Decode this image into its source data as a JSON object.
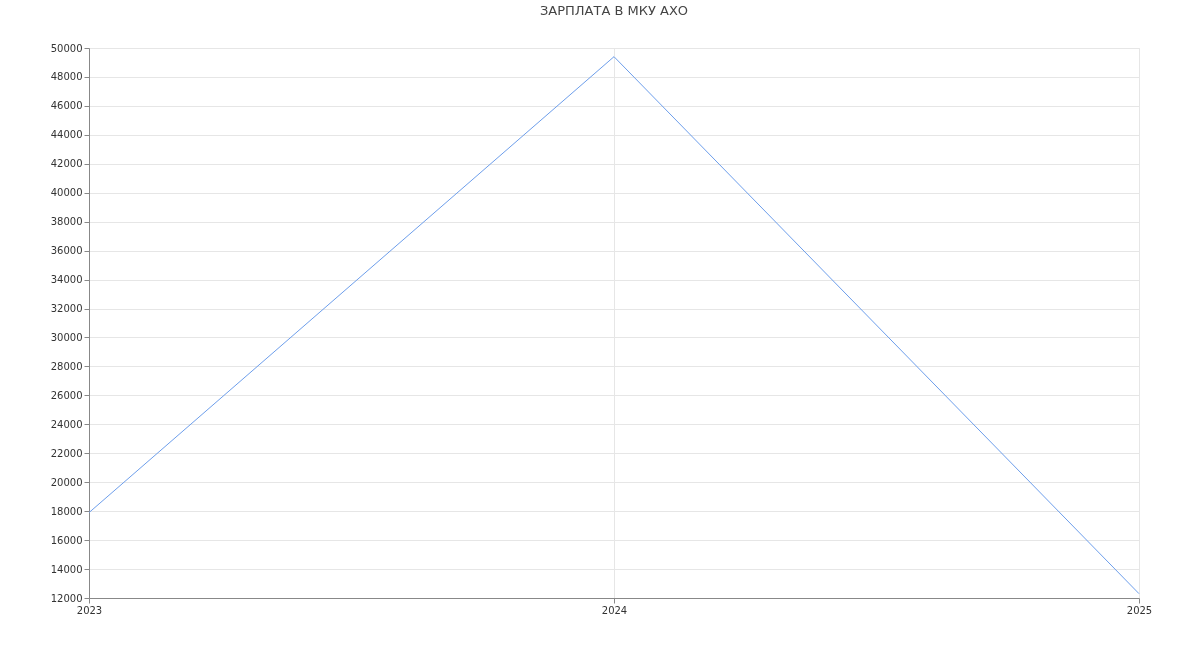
{
  "chart_data": {
    "type": "line",
    "title": "ЗАРПЛАТА В МКУ АХО",
    "x": [
      2023,
      2024,
      2025
    ],
    "series": [
      {
        "color": "#6d9eeb",
        "values": [
          17900,
          49400,
          12300
        ]
      }
    ],
    "xlim": [
      2023,
      2025
    ],
    "xticks": [
      2023,
      2024,
      2025
    ],
    "ylim": [
      12000,
      50000
    ],
    "yticks": [
      12000,
      14000,
      16000,
      18000,
      20000,
      22000,
      24000,
      26000,
      28000,
      30000,
      32000,
      34000,
      36000,
      38000,
      40000,
      42000,
      44000,
      46000,
      48000,
      50000
    ],
    "grid": true,
    "marker": "none",
    "line_style": "solid"
  }
}
